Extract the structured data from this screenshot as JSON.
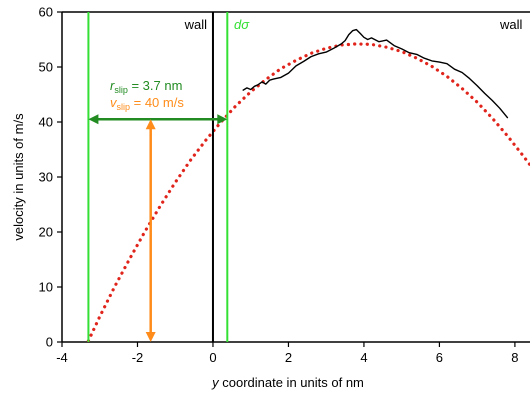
{
  "chart_data": {
    "type": "line",
    "xlabel_italic": "y",
    "xlabel_rest": " coordinate in units of nm",
    "ylabel": "velocity in units of m/s",
    "xlim": [
      -4,
      8.4
    ],
    "ylim": [
      0,
      60
    ],
    "x_ticks": [
      -4,
      -2,
      0,
      2,
      4,
      6,
      8
    ],
    "x_tick_labels": [
      "-4",
      "-2",
      "0",
      "2",
      "4",
      "6",
      "8"
    ],
    "y_ticks": [
      0,
      10,
      20,
      30,
      40,
      50,
      60
    ],
    "y_tick_labels": [
      "0",
      "10",
      "20",
      "30",
      "40",
      "50",
      "60"
    ],
    "grid": false,
    "series": [
      {
        "style": "dotted",
        "color": "#e0241b",
        "x": [
          -3.3,
          -3.0,
          -2.6,
          -2.2,
          -1.8,
          -1.4,
          -1.0,
          -0.6,
          -0.2,
          0.2,
          0.6,
          1.0,
          1.4,
          1.8,
          2.2,
          2.6,
          3.0,
          3.4,
          3.8,
          4.2,
          4.6,
          5.0,
          5.4,
          5.8,
          6.2,
          6.6,
          7.0,
          7.4,
          7.8,
          8.2,
          8.4
        ],
        "y": [
          0.2,
          4.6,
          10.1,
          15.2,
          20.1,
          24.7,
          29.0,
          33.0,
          36.6,
          39.9,
          42.9,
          45.5,
          47.7,
          49.7,
          51.2,
          52.5,
          53.4,
          54.0,
          54.2,
          54.1,
          53.6,
          52.8,
          51.6,
          50.1,
          48.3,
          46.1,
          43.6,
          40.7,
          37.5,
          34.0,
          32.2
        ]
      },
      {
        "style": "solid",
        "color": "#000000",
        "x": [
          0.8,
          0.9,
          1.0,
          1.1,
          1.2,
          1.3,
          1.4,
          1.5,
          1.6,
          1.8,
          2.0,
          2.2,
          2.4,
          2.6,
          2.8,
          3.0,
          3.2,
          3.4,
          3.5,
          3.6,
          3.7,
          3.8,
          3.9,
          4.0,
          4.1,
          4.2,
          4.4,
          4.6,
          4.8,
          5.0,
          5.2,
          5.4,
          5.6,
          5.8,
          6.0,
          6.2,
          6.4,
          6.6,
          6.8,
          7.0,
          7.2,
          7.4,
          7.6,
          7.8
        ],
        "y": [
          45.8,
          46.2,
          45.9,
          46.5,
          46.8,
          47.3,
          46.9,
          47.6,
          47.8,
          48.1,
          48.9,
          50.2,
          51.0,
          51.9,
          52.4,
          52.7,
          53.4,
          54.2,
          54.8,
          55.9,
          56.6,
          56.8,
          56.1,
          55.4,
          55.0,
          55.3,
          54.6,
          54.9,
          53.9,
          53.3,
          52.6,
          52.3,
          51.6,
          51.1,
          50.9,
          50.6,
          49.6,
          49.0,
          47.9,
          46.6,
          45.2,
          43.9,
          42.5,
          40.8
        ]
      }
    ],
    "vlines": [
      {
        "x": -3.3,
        "color": "#33e033"
      },
      {
        "x": 0,
        "color": "#000000"
      },
      {
        "x": 0.38,
        "color": "#33e033"
      }
    ],
    "annotations": {
      "wall_left": "wall",
      "wall_right": "wall",
      "dsigma": "dσ",
      "r_slip": {
        "sym": "r",
        "sub": "slip",
        "value": " = 3.7 nm",
        "color": "#228b22"
      },
      "v_slip": {
        "sym": "v",
        "sub": "slip",
        "value": " = 40 m/s",
        "color": "#ff8c1a"
      },
      "r_arrow": {
        "x1": -3.3,
        "x2": 0.38,
        "y": 40.5,
        "color": "#228b22"
      },
      "v_arrow": {
        "x": -1.65,
        "y1": 0,
        "y2": 40.5,
        "color": "#ff8c1a"
      }
    }
  }
}
